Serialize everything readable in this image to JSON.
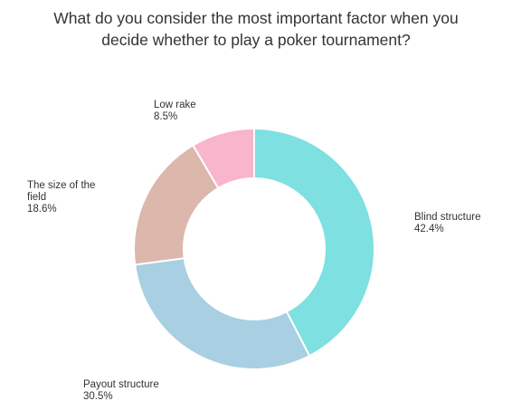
{
  "chart_data": {
    "type": "pie",
    "title_lines": [
      "What do you consider the most important factor when you",
      "decide whether to play a poker tournament?"
    ],
    "slices": [
      {
        "name": "Blind structure",
        "value": 42.4,
        "label_lines": [
          "Blind structure",
          "42.4%"
        ],
        "color": "#7ee0e0"
      },
      {
        "name": "Payout structure",
        "value": 30.5,
        "label_lines": [
          "Payout structure",
          "30.5%"
        ],
        "color": "#a8cfe2"
      },
      {
        "name": "The size of the field",
        "value": 18.6,
        "label_lines": [
          "The size of the",
          "field",
          "18.6%"
        ],
        "color": "#dbb7ac"
      },
      {
        "name": "Low rake",
        "value": 8.5,
        "label_lines": [
          "Low rake",
          "8.5%"
        ],
        "color": "#f8b5cb"
      }
    ]
  }
}
